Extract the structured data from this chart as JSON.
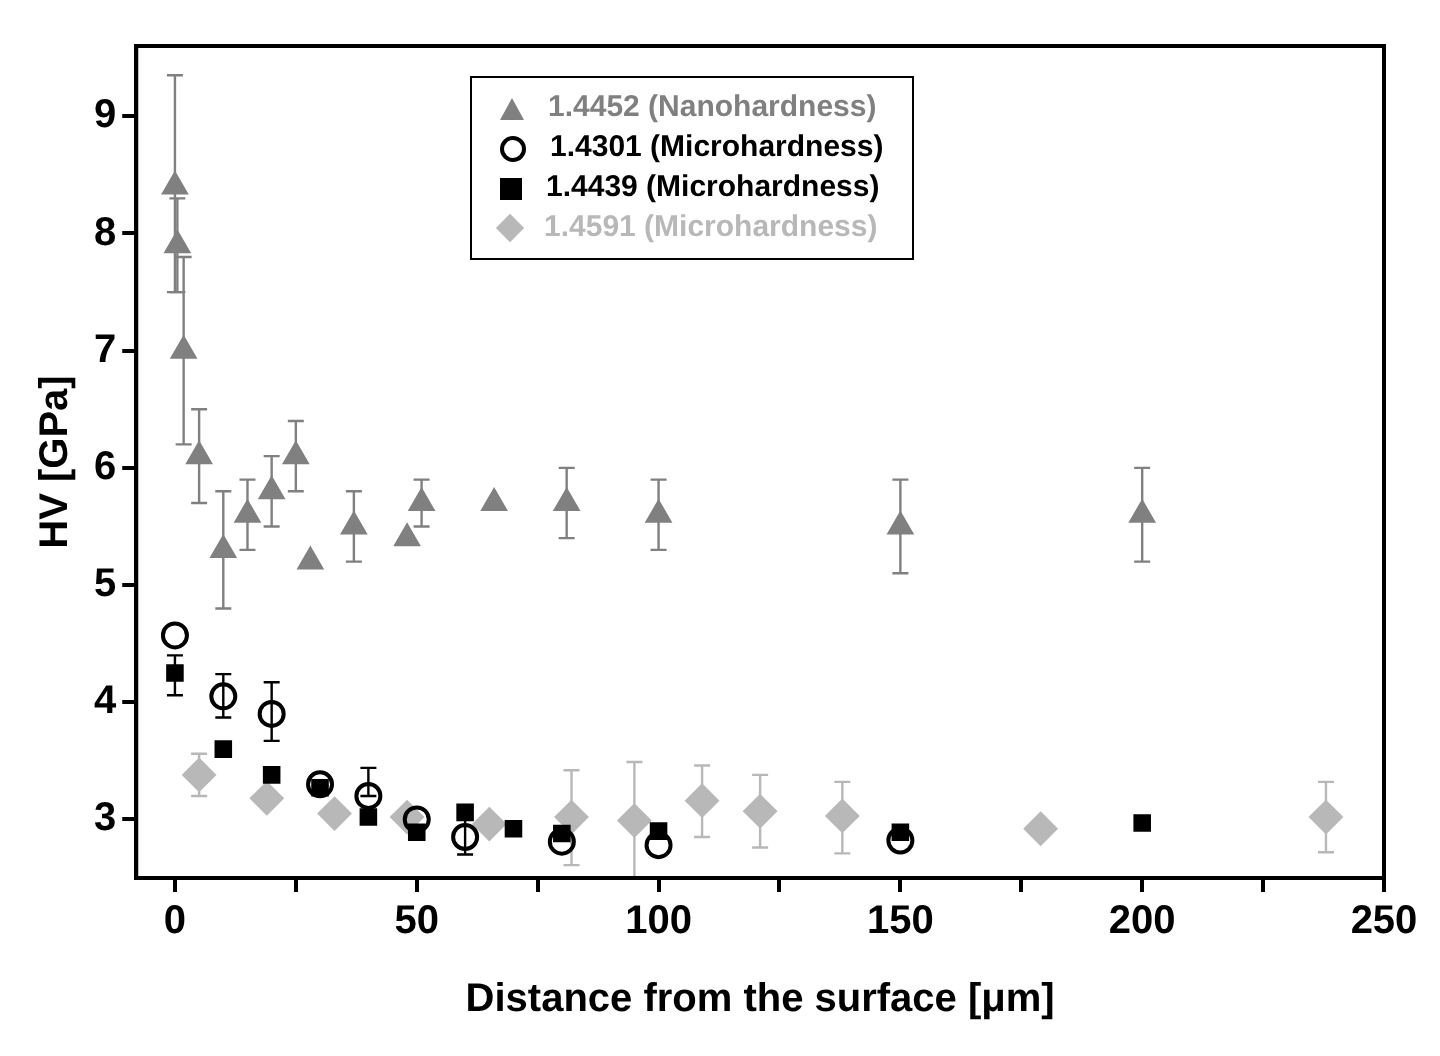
{
  "chart_data": {
    "type": "scatter",
    "xlabel": "Distance from the surface [μm]",
    "ylabel": "HV [GPa]",
    "xlim": [
      -8,
      250
    ],
    "ylim": [
      2.5,
      9.6
    ],
    "xticks": [
      0,
      {
        "value": 25,
        "label": null
      },
      50,
      {
        "value": 75,
        "label": null
      },
      100,
      {
        "value": 125,
        "label": null
      },
      150,
      {
        "value": 175,
        "label": null
      },
      200,
      {
        "value": 225,
        "label": null
      },
      250
    ],
    "yticks": [
      3,
      4,
      5,
      6,
      7,
      8,
      9
    ],
    "grid": false,
    "legend": "top",
    "series": [
      {
        "name": "1.4452 (Nanohardness)",
        "color": "#808080",
        "marker": "triangle",
        "x": [
          0,
          0.5,
          1.8,
          5,
          10,
          15,
          20,
          25,
          28,
          37,
          48,
          51,
          66,
          81,
          100,
          150,
          200
        ],
        "values": [
          8.4,
          7.9,
          7.0,
          6.1,
          5.3,
          5.6,
          5.8,
          6.1,
          5.2,
          5.5,
          5.4,
          5.7,
          5.7,
          5.7,
          5.6,
          5.5,
          5.6
        ],
        "errors": [
          [
            7.5,
            9.35
          ],
          0.4,
          [
            6.2,
            7.8
          ],
          [
            5.7,
            6.5
          ],
          [
            4.8,
            5.8
          ],
          [
            5.3,
            5.9
          ],
          [
            5.5,
            6.1
          ],
          [
            5.8,
            6.4
          ],
          null,
          [
            5.2,
            5.8
          ],
          null,
          [
            5.5,
            5.9
          ],
          null,
          [
            5.4,
            6.0
          ],
          [
            5.3,
            5.9
          ],
          [
            5.1,
            5.9
          ],
          [
            5.2,
            6.0
          ]
        ]
      },
      {
        "name": "1.4301 (Microhardness)",
        "color": "#000000",
        "marker": "circle",
        "x": [
          0,
          10,
          20,
          30,
          40,
          50,
          60,
          80,
          100,
          150
        ],
        "values": [
          4.57,
          4.05,
          3.9,
          3.3,
          3.2,
          3.0,
          2.85,
          2.81,
          2.78,
          2.82
        ],
        "errors": [
          null,
          [
            3.87,
            4.24
          ],
          [
            3.67,
            4.17
          ],
          null,
          [
            3.2,
            3.44
          ],
          null,
          [
            2.7,
            3.0
          ],
          null,
          null,
          null
        ]
      },
      {
        "name": "1.4439 (Microhardness)",
        "color": "#000000",
        "marker": "square",
        "x": [
          0,
          10,
          20,
          30,
          40,
          50,
          60,
          70,
          80,
          100,
          150,
          200
        ],
        "values": [
          4.25,
          3.6,
          3.38,
          3.27,
          3.02,
          2.89,
          3.06,
          2.92,
          2.88,
          2.9,
          2.89,
          2.97
        ],
        "errors": [
          [
            4.06,
            4.4
          ],
          null,
          null,
          null,
          null,
          null,
          null,
          null,
          null,
          null,
          null,
          null
        ]
      },
      {
        "name": "1.4591 (Microhardness)",
        "color": "#b8b8b8",
        "marker": "diamond",
        "x": [
          5,
          19,
          33,
          48,
          65,
          82,
          95,
          109,
          121,
          138,
          179,
          238
        ],
        "values": [
          3.38,
          3.18,
          3.05,
          3.02,
          2.96,
          3.02,
          2.99,
          3.16,
          3.07,
          3.03,
          2.92,
          3.02
        ],
        "errors": [
          [
            3.2,
            3.56
          ],
          null,
          null,
          null,
          null,
          [
            2.61,
            3.42
          ],
          [
            2.5,
            3.49
          ],
          [
            2.85,
            3.46
          ],
          [
            2.76,
            3.38
          ],
          [
            2.71,
            3.32
          ],
          null,
          0.3
        ]
      }
    ]
  }
}
